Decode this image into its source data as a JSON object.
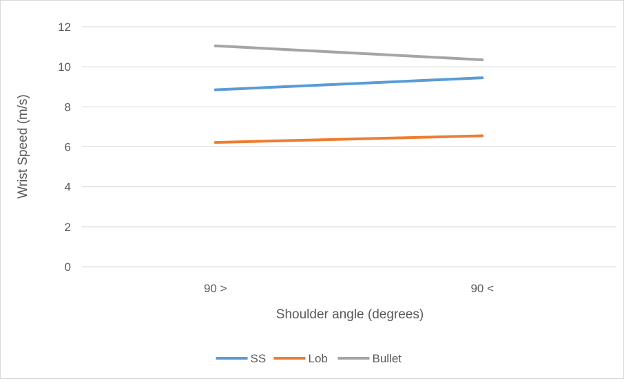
{
  "chart_data": {
    "type": "line",
    "categories": [
      "90 >",
      "90 <"
    ],
    "series": [
      {
        "name": "SS",
        "values": [
          8.85,
          9.45
        ],
        "color": "#5b9bd5"
      },
      {
        "name": "Lob",
        "values": [
          6.22,
          6.55
        ],
        "color": "#ed7d31"
      },
      {
        "name": "Bullet",
        "values": [
          11.05,
          10.35
        ],
        "color": "#a5a5a5"
      }
    ],
    "title": "",
    "xlabel": "Shoulder angle (degrees)",
    "ylabel": "Wrist Speed (m/s)",
    "ylim": [
      0,
      12
    ],
    "yticks": [
      "0",
      "2",
      "4",
      "6",
      "8",
      "10",
      "12"
    ],
    "grid": true,
    "legend_position": "bottom"
  }
}
